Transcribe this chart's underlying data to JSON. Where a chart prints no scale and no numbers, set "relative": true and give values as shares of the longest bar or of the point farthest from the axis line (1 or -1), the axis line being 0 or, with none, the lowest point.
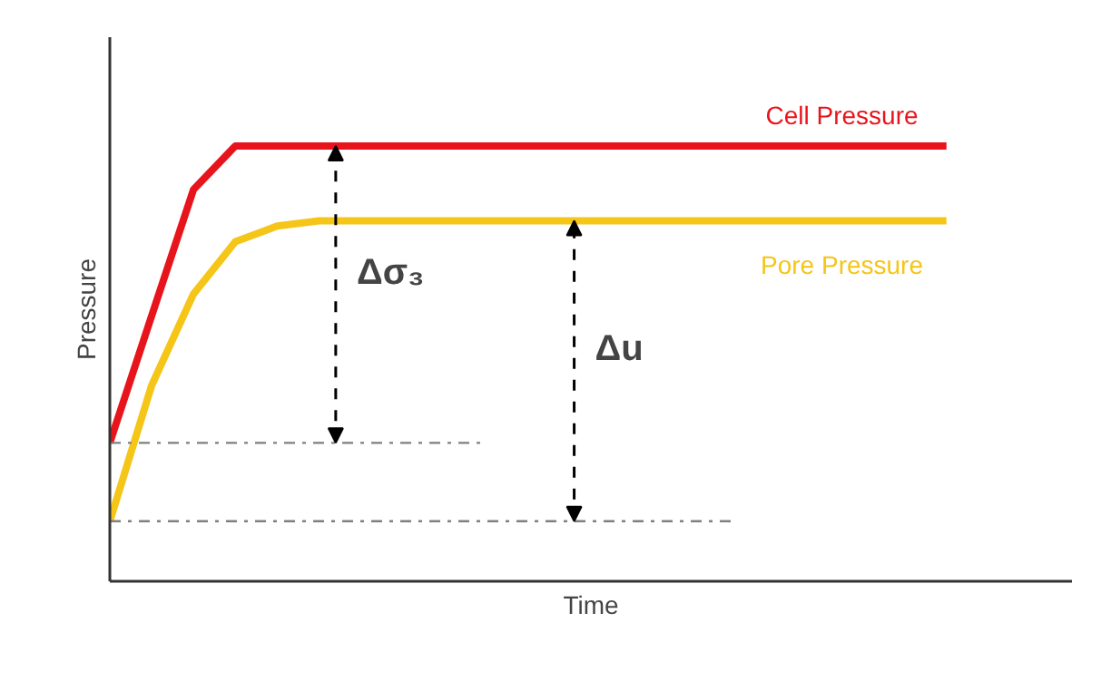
{
  "chart_data": {
    "type": "line",
    "relative": true,
    "xlabel": "Time",
    "ylabel": "Pressure",
    "categories": [
      null,
      null,
      null,
      null,
      null,
      null,
      null,
      null,
      null,
      null,
      null,
      null,
      null,
      null,
      null,
      null,
      null,
      null,
      null,
      null,
      null
    ],
    "series": [
      {
        "name": "Cell Pressure",
        "color": "#e8141b",
        "values": [
          0.318,
          0.61,
          0.9,
          1,
          1,
          1,
          1,
          1,
          1,
          1,
          1,
          1,
          1,
          1,
          1,
          1,
          1,
          1,
          1,
          1,
          1
        ]
      },
      {
        "name": "Pore Pressure",
        "color": "#f5c518",
        "values": [
          0.138,
          0.45,
          0.66,
          0.78,
          0.816,
          0.828,
          0.828,
          0.828,
          0.828,
          0.828,
          0.828,
          0.828,
          0.828,
          0.828,
          0.828,
          0.828,
          0.828,
          0.828,
          0.828,
          0.828,
          0.828
        ]
      }
    ],
    "ref_lines": [
      {
        "axis": "y",
        "value": 0.318,
        "color": "#7f7f7f",
        "line_style": "dashdot"
      },
      {
        "axis": "y",
        "value": 0.138,
        "color": "#7f7f7f",
        "line_style": "dashdot"
      }
    ],
    "annotations": [
      {
        "text": "Δσ₃"
      },
      {
        "text": "Δu"
      }
    ],
    "marker": "none",
    "line_style": "solid"
  }
}
